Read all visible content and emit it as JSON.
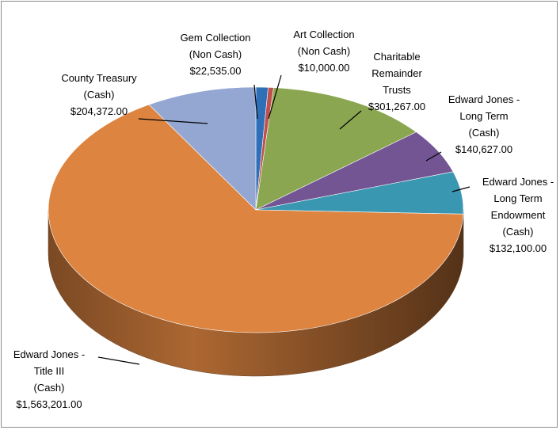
{
  "chart_data": {
    "type": "pie",
    "title": "",
    "style": "3d",
    "slices": [
      {
        "label": [
          "Gem Collection",
          "(Non Cash)",
          "$22,535.00"
        ],
        "value": 22535,
        "color": "#2f6fb7"
      },
      {
        "label": [
          "Art Collection",
          "(Non Cash)",
          "$10,000.00"
        ],
        "value": 10000,
        "color": "#c0504d"
      },
      {
        "label": [
          "Charitable",
          "Remainder",
          "Trusts",
          "$301,267.00"
        ],
        "value": 301267,
        "color": "#8aa650"
      },
      {
        "label": [
          "Edward Jones -",
          "Long Term",
          "(Cash)",
          "$140,627.00"
        ],
        "value": 140627,
        "color": "#735593"
      },
      {
        "label": [
          "Edward Jones -",
          "Long Term",
          "Endowment",
          "(Cash)",
          "$132,100.00"
        ],
        "value": 132100,
        "color": "#3a97b1"
      },
      {
        "label": [
          "Edward Jones -",
          "Title III",
          "(Cash)",
          "$1,563,201.00"
        ],
        "value": 1563201,
        "color": "#dd8440"
      },
      {
        "label": [
          "County Treasury",
          "(Cash)",
          "$204,372.00"
        ],
        "value": 204372,
        "color": "#93a7d2"
      }
    ]
  }
}
